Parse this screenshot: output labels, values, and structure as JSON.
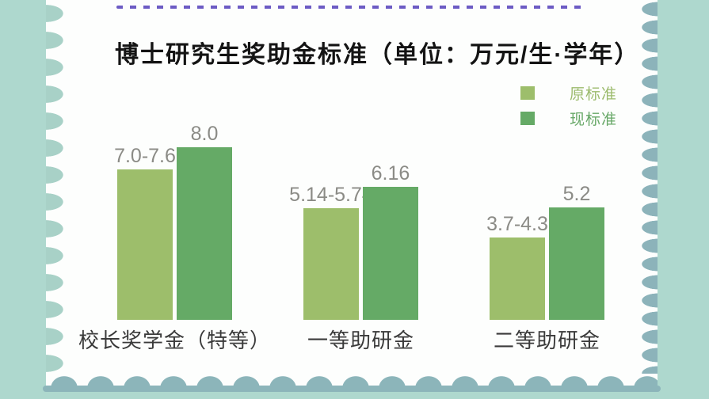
{
  "page": {
    "background_color": "#aed8ce",
    "stamp_color": "#fdfefd",
    "border_accent_color": "#8cb5ba",
    "dash_color": "#6c5bc4"
  },
  "title": "博士研究生奖助金标准（单位：万元/生·学年）",
  "legend": {
    "items": [
      {
        "label": "原标准",
        "color": "#9dbe6b",
        "text_color": "#9cbb6d"
      },
      {
        "label": "现标准",
        "color": "#65aa66",
        "text_color": "#68a868"
      }
    ]
  },
  "chart_data": {
    "type": "bar",
    "title": "博士研究生奖助金标准",
    "unit": "万元/生·学年",
    "categories": [
      "校长奖学金（特等）",
      "一等助研金",
      "二等助研金"
    ],
    "series": [
      {
        "name": "原标准",
        "color": "#9dbe6b",
        "labels": [
          "7.0-7.6",
          "5.14-5.74",
          "3.7-4.3"
        ],
        "values": [
          7.3,
          5.44,
          4.0
        ]
      },
      {
        "name": "现标准",
        "color": "#65aa66",
        "labels": [
          "8.0",
          "6.16",
          "5.2"
        ],
        "values": [
          8.0,
          6.16,
          5.2
        ]
      }
    ],
    "value_label_color": "#8b8b86",
    "category_label_color": "#3a3a3a",
    "legend_position": "top-right",
    "grid": false,
    "axes_visible": false
  }
}
